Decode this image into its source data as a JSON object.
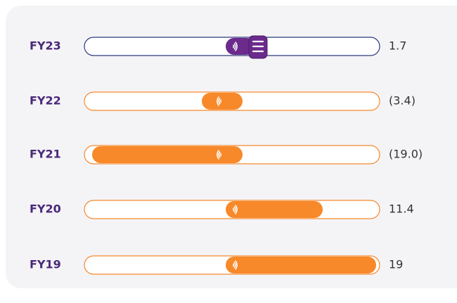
{
  "chart_data": {
    "type": "bar",
    "categories": [
      "FY23",
      "FY22",
      "FY21",
      "FY20",
      "FY19"
    ],
    "values": [
      1.7,
      -3.4,
      -19.0,
      11.4,
      19
    ],
    "value_labels": [
      "1.7",
      "(3.4)",
      "(19.0)",
      "11.4",
      "19"
    ],
    "colors": [
      "#6b2a8c",
      "#f7892a",
      "#f7892a",
      "#f7892a",
      "#f7892a"
    ],
    "xlim": [
      -20,
      20
    ]
  }
}
